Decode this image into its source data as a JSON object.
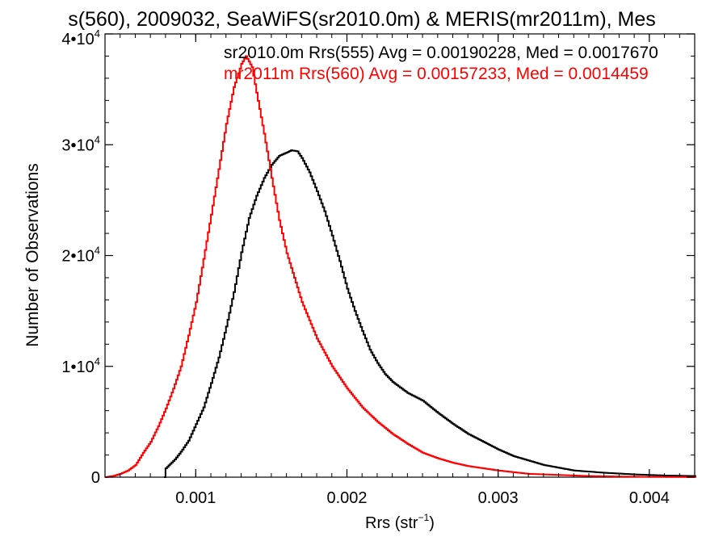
{
  "chart_data": {
    "type": "line",
    "title": "s(560), 2009032, SeaWiFS(sr2010.0m) & MERIS(mr2011m), Mes",
    "xlabel_main": "Rrs (str",
    "xlabel_sup": "−1",
    "xlabel_close": ")",
    "ylabel": "Number of Observations",
    "xlim": [
      0.0004,
      0.0043
    ],
    "ylim": [
      0,
      40000
    ],
    "x_ticks": [
      {
        "value": 0.001,
        "label": "0.001"
      },
      {
        "value": 0.002,
        "label": "0.002"
      },
      {
        "value": 0.003,
        "label": "0.003"
      },
      {
        "value": 0.004,
        "label": "0.004"
      }
    ],
    "y_ticks": [
      {
        "value": 0,
        "base": "0",
        "exp": ""
      },
      {
        "value": 10000,
        "base": "1•10",
        "exp": "4"
      },
      {
        "value": 20000,
        "base": "2•10",
        "exp": "4"
      },
      {
        "value": 30000,
        "base": "3•10",
        "exp": "4"
      },
      {
        "value": 40000,
        "base": "4•10",
        "exp": "4"
      }
    ],
    "legend": [
      {
        "text": "sr2010.0m Rrs(555) Avg = 0.00190228, Med = 0.0017670",
        "color": "#000000"
      },
      {
        "text": "mr2011m Rrs(560) Avg = 0.00157233, Med = 0.0014459",
        "color": "#ff0000"
      }
    ],
    "series": [
      {
        "color": "#000000",
        "x": [
          0.00079,
          0.0008,
          0.00083,
          0.00086,
          0.0009,
          0.00095,
          0.001,
          0.00105,
          0.0011,
          0.00115,
          0.0012,
          0.00125,
          0.0013,
          0.00135,
          0.0014,
          0.00145,
          0.0015,
          0.00155,
          0.0016,
          0.00163,
          0.00167,
          0.0017,
          0.00175,
          0.0018,
          0.00185,
          0.0019,
          0.00195,
          0.002,
          0.00205,
          0.0021,
          0.00215,
          0.0022,
          0.00225,
          0.0023,
          0.0024,
          0.0025,
          0.0026,
          0.0027,
          0.0028,
          0.0029,
          0.003,
          0.0031,
          0.0032,
          0.0033,
          0.0035,
          0.0037,
          0.0039,
          0.0041,
          0.0043
        ],
        "y": [
          0,
          800,
          1200,
          1600,
          2300,
          3300,
          4800,
          6300,
          8500,
          10800,
          13600,
          16700,
          20300,
          23400,
          25400,
          27000,
          28200,
          29000,
          29300,
          29500,
          29400,
          28800,
          27500,
          25800,
          24000,
          21800,
          19500,
          17000,
          15000,
          13200,
          11500,
          10300,
          9300,
          8600,
          7600,
          6900,
          5800,
          4800,
          3900,
          3200,
          2500,
          1900,
          1500,
          1100,
          600,
          400,
          250,
          150,
          100
        ]
      },
      {
        "color": "#ff0000",
        "x": [
          0.0004,
          0.00045,
          0.0005,
          0.00055,
          0.0006,
          0.00065,
          0.0007,
          0.00075,
          0.0008,
          0.00085,
          0.0009,
          0.00095,
          0.001,
          0.00105,
          0.0011,
          0.00115,
          0.0012,
          0.00125,
          0.0013,
          0.00133,
          0.00137,
          0.0014,
          0.00145,
          0.0015,
          0.00155,
          0.0016,
          0.0017,
          0.0018,
          0.0019,
          0.002,
          0.0021,
          0.0022,
          0.0023,
          0.0024,
          0.0025,
          0.0026,
          0.0027,
          0.0028,
          0.003,
          0.0032,
          0.0034,
          0.0036,
          0.0038,
          0.004,
          0.0043
        ],
        "y": [
          0,
          100,
          300,
          600,
          1100,
          2200,
          3200,
          4600,
          6200,
          8000,
          10000,
          12800,
          15800,
          19700,
          23700,
          27800,
          31900,
          35200,
          37300,
          38000,
          37000,
          34700,
          31000,
          27000,
          23200,
          20200,
          15800,
          12500,
          10000,
          8000,
          6300,
          5000,
          3900,
          3000,
          2200,
          1700,
          1300,
          1000,
          600,
          300,
          200,
          100,
          60,
          30,
          10
        ]
      }
    ]
  }
}
